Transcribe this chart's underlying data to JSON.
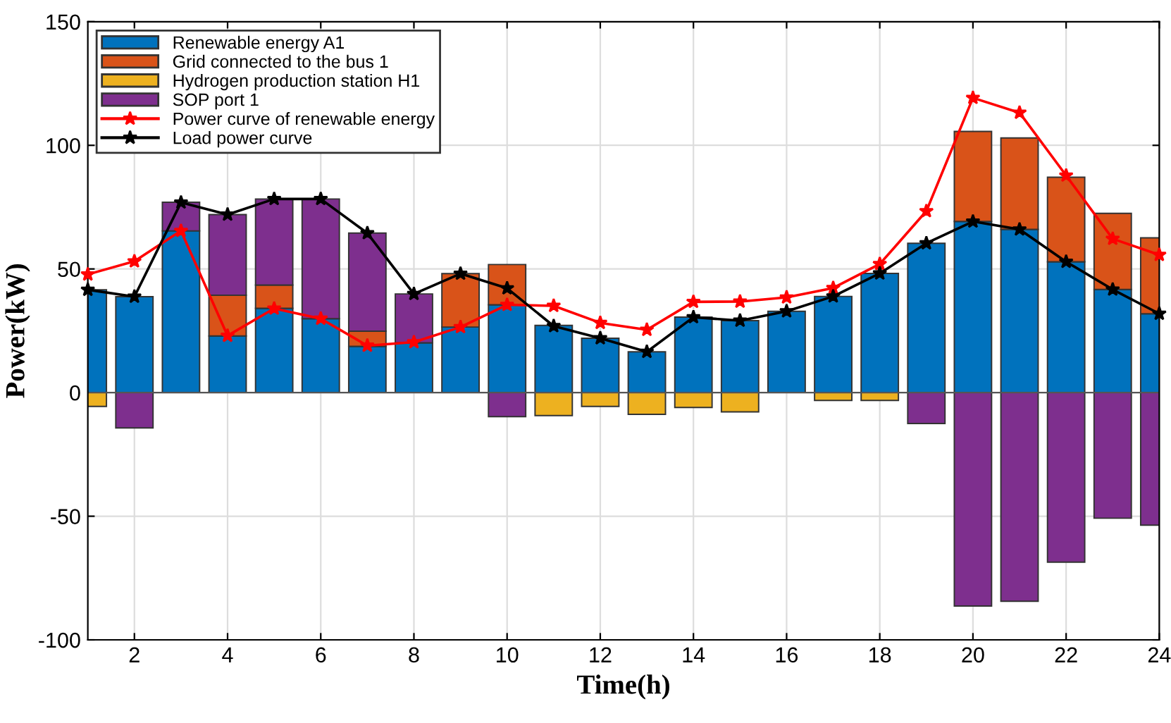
{
  "chart_data": {
    "type": "bar",
    "stacked": true,
    "xlabel": "Time(h)",
    "ylabel": "Power(kW)",
    "x": [
      1,
      2,
      3,
      4,
      5,
      6,
      7,
      8,
      9,
      10,
      11,
      12,
      13,
      14,
      15,
      16,
      17,
      18,
      19,
      20,
      21,
      22,
      23,
      24
    ],
    "xlim": [
      1,
      24
    ],
    "xticks": [
      2,
      4,
      6,
      8,
      10,
      12,
      14,
      16,
      18,
      20,
      22,
      24
    ],
    "ylim": [
      -100,
      150
    ],
    "yticks": [
      -100,
      -50,
      0,
      50,
      100,
      150
    ],
    "grid": true,
    "legend": "top left",
    "series": [
      {
        "name": "Renewable energy A1",
        "color": "#0072bd",
        "values": [
          41.6,
          38.8,
          65.4,
          22.9,
          34.1,
          29.9,
          18.7,
          20.1,
          26.5,
          35.5,
          27.2,
          22,
          16.5,
          30.5,
          29.1,
          32.9,
          38.9,
          48.2,
          60.4,
          69.2,
          66,
          52.9,
          41.7,
          31.9
        ]
      },
      {
        "name": "Grid connected to the bus 1",
        "color": "#d95319",
        "values": [
          null,
          null,
          null,
          16.5,
          9.4,
          null,
          6.1,
          null,
          21.6,
          16.3,
          null,
          null,
          null,
          null,
          null,
          null,
          null,
          null,
          null,
          36.4,
          37,
          34.2,
          30.8,
          30.7
        ]
      },
      {
        "name": "Hydrogen production station H1",
        "color": "#edb120",
        "values": [
          -5.6,
          null,
          null,
          null,
          null,
          null,
          null,
          null,
          null,
          null,
          -9.3,
          -5.6,
          -8.8,
          -6,
          -7.8,
          null,
          -3.2,
          -3.2,
          null,
          null,
          null,
          null,
          null,
          null
        ]
      },
      {
        "name": "SOP port 1",
        "color": "#7e2f8e",
        "values": [
          null,
          -14.3,
          11.6,
          32.6,
          34.8,
          48.4,
          39.7,
          19.8,
          null,
          -9.7,
          null,
          null,
          null,
          null,
          null,
          null,
          null,
          null,
          -12.5,
          -86.3,
          -84.4,
          -68.6,
          -50.8,
          -53.6
        ]
      },
      {
        "name": "Power curve of renewable energy",
        "type": "line",
        "color": "#ff0000",
        "marker": "star",
        "line_style": "solid",
        "values": [
          47.8,
          53.1,
          65.4,
          23,
          34,
          29.9,
          19,
          20.4,
          26.5,
          35.5,
          35.1,
          28.2,
          25.4,
          36.7,
          36.8,
          38.5,
          42.3,
          52,
          73.4,
          119.2,
          113.2,
          87.8,
          62.2,
          55.7
        ]
      },
      {
        "name": "Load power curve",
        "type": "line",
        "color": "#000000",
        "marker": "star",
        "line_style": "solid",
        "values": [
          41.6,
          38.8,
          76.9,
          72,
          78.3,
          78.3,
          64.5,
          39.9,
          48.1,
          42.2,
          26.9,
          22,
          16.5,
          30.5,
          29.1,
          32.9,
          38.9,
          48.2,
          60.4,
          69.2,
          66,
          52.9,
          41.7,
          31.9
        ]
      }
    ]
  }
}
